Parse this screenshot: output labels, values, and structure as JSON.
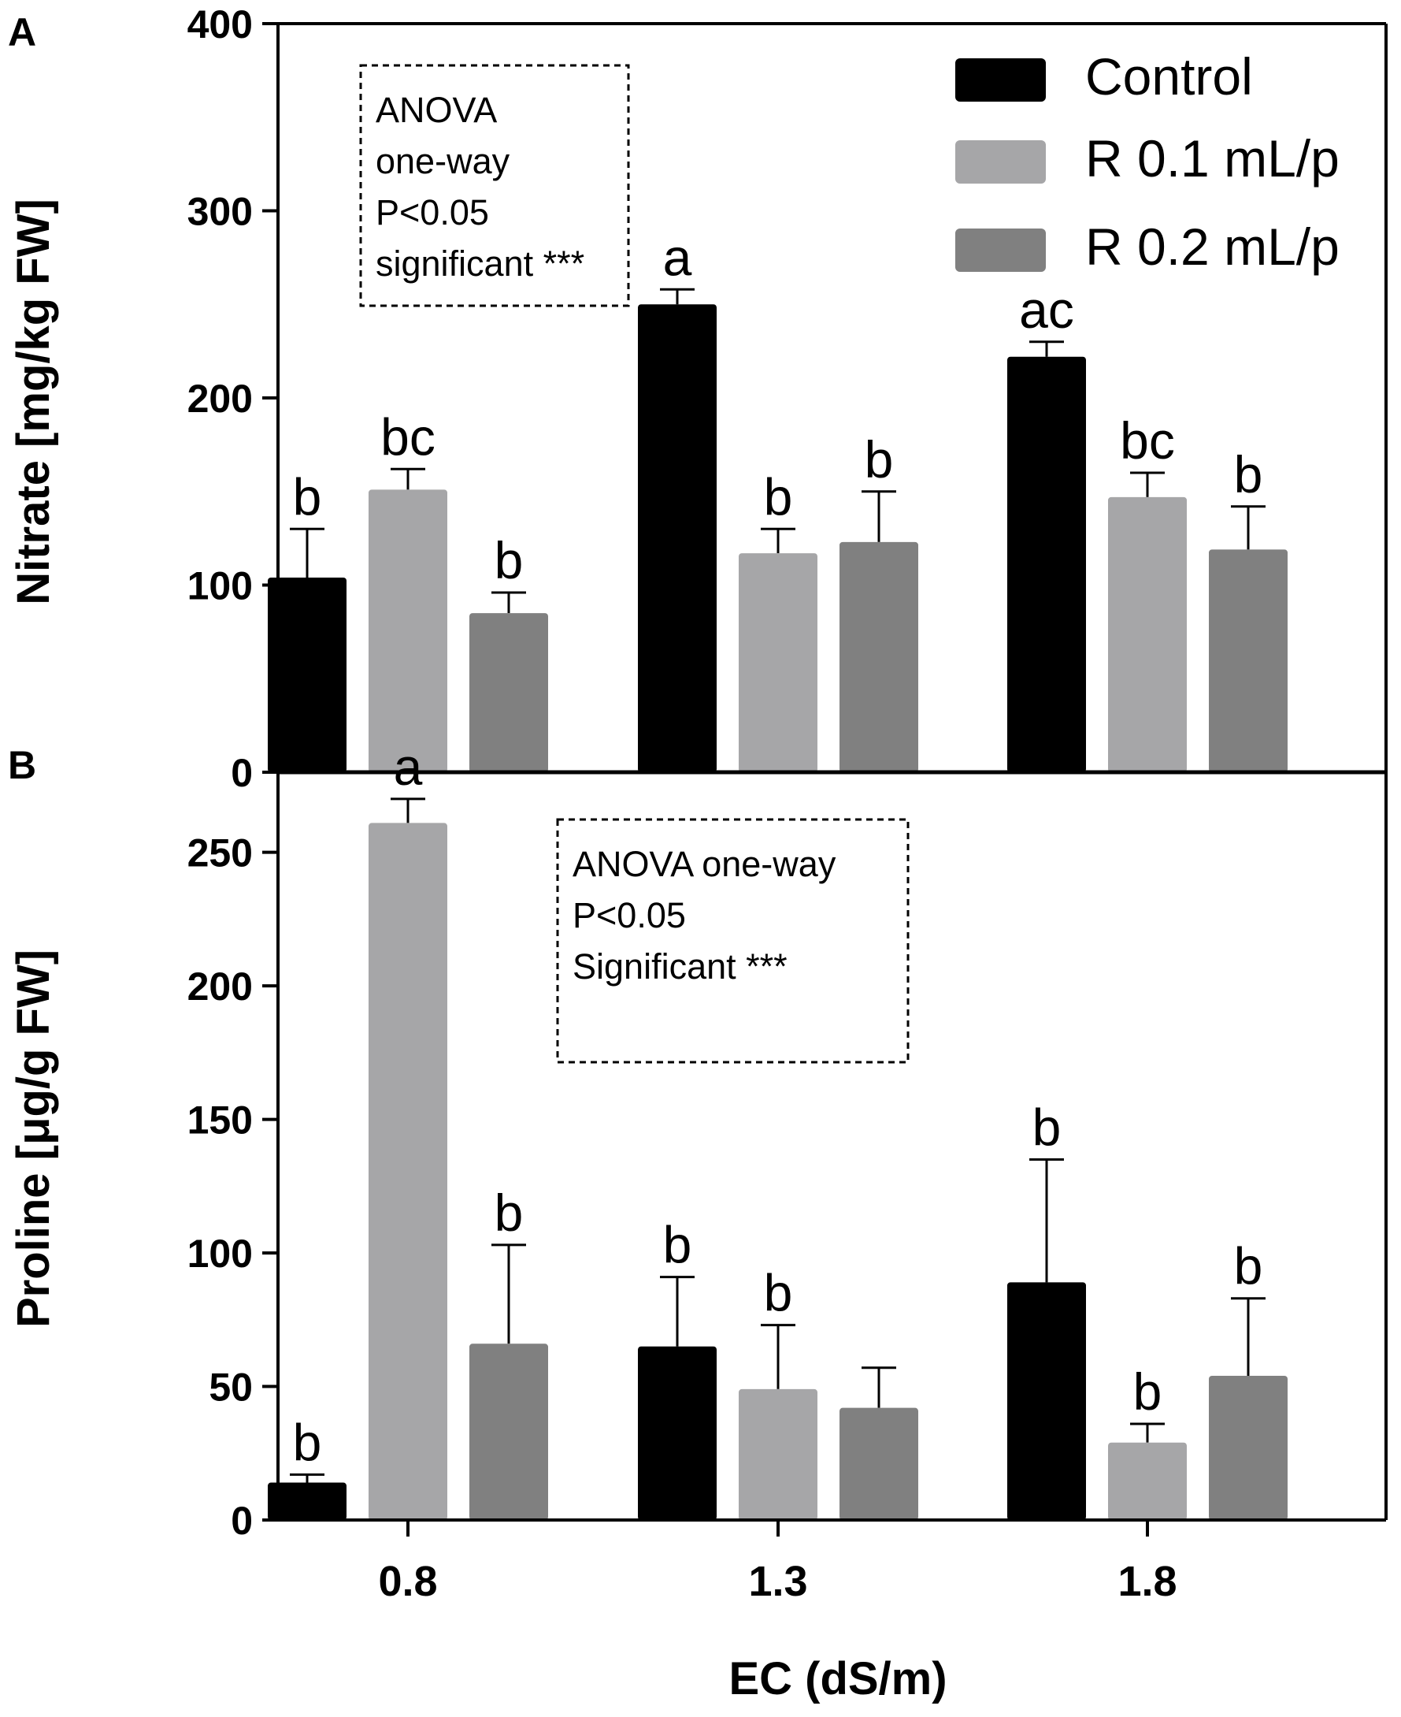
{
  "colors": {
    "control": "#000000",
    "r01": "#a6a6a8",
    "r02": "#808080",
    "axis": "#000000"
  },
  "x_axis": {
    "title": "EC (dS/m)",
    "categories": [
      "0.8",
      "1.3",
      "1.8"
    ]
  },
  "legend": {
    "position": "top-right",
    "entries": [
      "Control",
      "R 0.1 mL/p",
      "R 0.2 mL/p"
    ]
  },
  "chart_data": [
    {
      "type": "bar",
      "panel_label": "A",
      "title": "",
      "xlabel": "EC (dS/m)",
      "ylabel": "Nitrate [mg/kg FW]",
      "categories": [
        "0.8",
        "1.3",
        "1.8"
      ],
      "ylim": [
        0,
        400
      ],
      "yticks": [
        "0",
        "100",
        "200",
        "300",
        "400"
      ],
      "series": [
        {
          "name": "Control",
          "values": [
            104,
            250,
            222
          ],
          "errors": [
            26,
            8,
            8
          ],
          "letters": [
            "b",
            "a",
            "ac"
          ]
        },
        {
          "name": "R 0.1 mL/p",
          "values": [
            151,
            117,
            147
          ],
          "errors": [
            11,
            13,
            13
          ],
          "letters": [
            "bc",
            "b",
            "bc"
          ]
        },
        {
          "name": "R 0.2 mL/p",
          "values": [
            85,
            123,
            119
          ],
          "errors": [
            11,
            27,
            23
          ],
          "letters": [
            "b",
            "b",
            "b"
          ]
        }
      ],
      "annotation": [
        "ANOVA",
        "one-way",
        "P<0.05",
        "significant ***"
      ]
    },
    {
      "type": "bar",
      "panel_label": "B",
      "title": "",
      "xlabel": "EC (dS/m)",
      "ylabel": "Proline [μg/g FW]",
      "categories": [
        "0.8",
        "1.3",
        "1.8"
      ],
      "ylim": [
        0,
        280
      ],
      "yticks": [
        "0",
        "50",
        "100",
        "150",
        "200",
        "250"
      ],
      "series": [
        {
          "name": "Control",
          "values": [
            14,
            65,
            89
          ],
          "errors": [
            3,
            26,
            46
          ],
          "letters": [
            "b",
            "b",
            "b"
          ]
        },
        {
          "name": "R 0.1 mL/p",
          "values": [
            261,
            49,
            29
          ],
          "errors": [
            9,
            24,
            7
          ],
          "letters": [
            "a",
            "b",
            "b"
          ]
        },
        {
          "name": "R 0.2 mL/p",
          "values": [
            66,
            42,
            54
          ],
          "errors": [
            37,
            15,
            29
          ],
          "letters": [
            "b",
            "",
            "b"
          ]
        }
      ],
      "annotation": [
        "ANOVA one-way",
        "P<0.05",
        "Significant ***"
      ]
    }
  ]
}
